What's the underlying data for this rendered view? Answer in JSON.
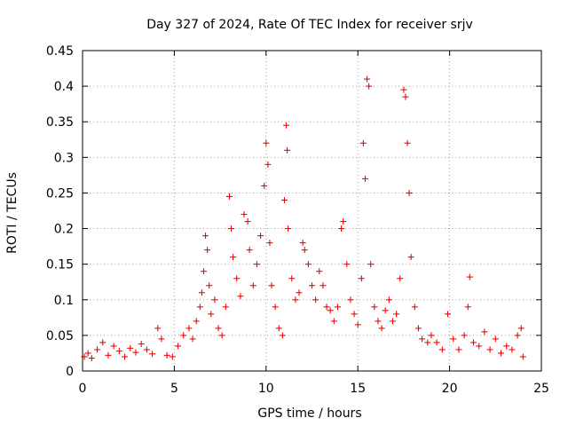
{
  "chart_data": {
    "type": "scatter",
    "title": "Day 327 of 2024, Rate Of TEC Index for receiver srjv",
    "xlabel": "GPS time / hours",
    "ylabel": "ROTI / TECUs",
    "xlim": [
      0,
      25
    ],
    "ylim": [
      0,
      0.45
    ],
    "xticks": [
      0,
      5,
      10,
      15,
      20,
      25
    ],
    "yticks": [
      0,
      0.05,
      0.1,
      0.15,
      0.2,
      0.25,
      0.3,
      0.35,
      0.4,
      0.45
    ],
    "grid": true,
    "marker": "+",
    "color": "#ff0000",
    "series": [
      {
        "name": "ROTI",
        "points": [
          [
            0.1,
            0.02
          ],
          [
            0.3,
            0.025
          ],
          [
            0.5,
            0.018
          ],
          [
            0.8,
            0.03
          ],
          [
            1.1,
            0.04
          ],
          [
            1.4,
            0.022
          ],
          [
            1.7,
            0.035
          ],
          [
            2.0,
            0.028
          ],
          [
            2.3,
            0.02
          ],
          [
            2.6,
            0.032
          ],
          [
            2.9,
            0.026
          ],
          [
            3.2,
            0.038
          ],
          [
            3.5,
            0.03
          ],
          [
            3.8,
            0.024
          ],
          [
            4.1,
            0.06
          ],
          [
            4.3,
            0.045
          ],
          [
            4.6,
            0.022
          ],
          [
            4.9,
            0.02
          ],
          [
            5.2,
            0.035
          ],
          [
            5.5,
            0.05
          ],
          [
            5.8,
            0.06
          ],
          [
            6.0,
            0.045
          ],
          [
            6.2,
            0.07
          ],
          [
            6.4,
            0.09
          ],
          [
            6.5,
            0.11
          ],
          [
            6.6,
            0.14
          ],
          [
            6.7,
            0.19
          ],
          [
            6.8,
            0.17
          ],
          [
            6.9,
            0.12
          ],
          [
            7.0,
            0.08
          ],
          [
            7.2,
            0.1
          ],
          [
            7.4,
            0.06
          ],
          [
            7.6,
            0.05
          ],
          [
            7.8,
            0.09
          ],
          [
            8.0,
            0.245
          ],
          [
            8.1,
            0.2
          ],
          [
            8.2,
            0.16
          ],
          [
            8.4,
            0.13
          ],
          [
            8.6,
            0.105
          ],
          [
            8.8,
            0.22
          ],
          [
            9.0,
            0.21
          ],
          [
            9.1,
            0.17
          ],
          [
            9.3,
            0.12
          ],
          [
            9.5,
            0.15
          ],
          [
            9.7,
            0.19
          ],
          [
            9.9,
            0.26
          ],
          [
            10.0,
            0.32
          ],
          [
            10.1,
            0.29
          ],
          [
            10.2,
            0.18
          ],
          [
            10.3,
            0.12
          ],
          [
            10.5,
            0.09
          ],
          [
            10.7,
            0.06
          ],
          [
            10.9,
            0.05
          ],
          [
            11.0,
            0.24
          ],
          [
            11.1,
            0.345
          ],
          [
            11.15,
            0.31
          ],
          [
            11.2,
            0.2
          ],
          [
            11.4,
            0.13
          ],
          [
            11.6,
            0.1
          ],
          [
            11.8,
            0.11
          ],
          [
            12.0,
            0.18
          ],
          [
            12.1,
            0.17
          ],
          [
            12.3,
            0.15
          ],
          [
            12.5,
            0.12
          ],
          [
            12.7,
            0.1
          ],
          [
            12.9,
            0.14
          ],
          [
            13.1,
            0.12
          ],
          [
            13.3,
            0.09
          ],
          [
            13.5,
            0.085
          ],
          [
            13.7,
            0.07
          ],
          [
            13.9,
            0.09
          ],
          [
            14.1,
            0.2
          ],
          [
            14.2,
            0.21
          ],
          [
            14.4,
            0.15
          ],
          [
            14.6,
            0.1
          ],
          [
            14.8,
            0.08
          ],
          [
            15.0,
            0.065
          ],
          [
            15.2,
            0.13
          ],
          [
            15.3,
            0.32
          ],
          [
            15.4,
            0.27
          ],
          [
            15.5,
            0.41
          ],
          [
            15.6,
            0.4
          ],
          [
            15.7,
            0.15
          ],
          [
            15.9,
            0.09
          ],
          [
            16.1,
            0.07
          ],
          [
            16.3,
            0.06
          ],
          [
            16.5,
            0.085
          ],
          [
            16.7,
            0.1
          ],
          [
            16.9,
            0.07
          ],
          [
            17.1,
            0.08
          ],
          [
            17.3,
            0.13
          ],
          [
            17.5,
            0.395
          ],
          [
            17.6,
            0.385
          ],
          [
            17.7,
            0.32
          ],
          [
            17.8,
            0.25
          ],
          [
            17.9,
            0.16
          ],
          [
            18.1,
            0.09
          ],
          [
            18.3,
            0.06
          ],
          [
            18.5,
            0.045
          ],
          [
            18.8,
            0.04
          ],
          [
            19.0,
            0.05
          ],
          [
            19.3,
            0.04
          ],
          [
            19.6,
            0.03
          ],
          [
            19.9,
            0.08
          ],
          [
            20.2,
            0.045
          ],
          [
            20.5,
            0.03
          ],
          [
            20.8,
            0.05
          ],
          [
            21.0,
            0.09
          ],
          [
            21.1,
            0.132
          ],
          [
            21.3,
            0.04
          ],
          [
            21.6,
            0.035
          ],
          [
            21.9,
            0.055
          ],
          [
            22.2,
            0.03
          ],
          [
            22.5,
            0.045
          ],
          [
            22.8,
            0.025
          ],
          [
            23.1,
            0.035
          ],
          [
            23.4,
            0.03
          ],
          [
            23.7,
            0.05
          ],
          [
            23.9,
            0.06
          ],
          [
            24.0,
            0.02
          ]
        ]
      }
    ]
  }
}
